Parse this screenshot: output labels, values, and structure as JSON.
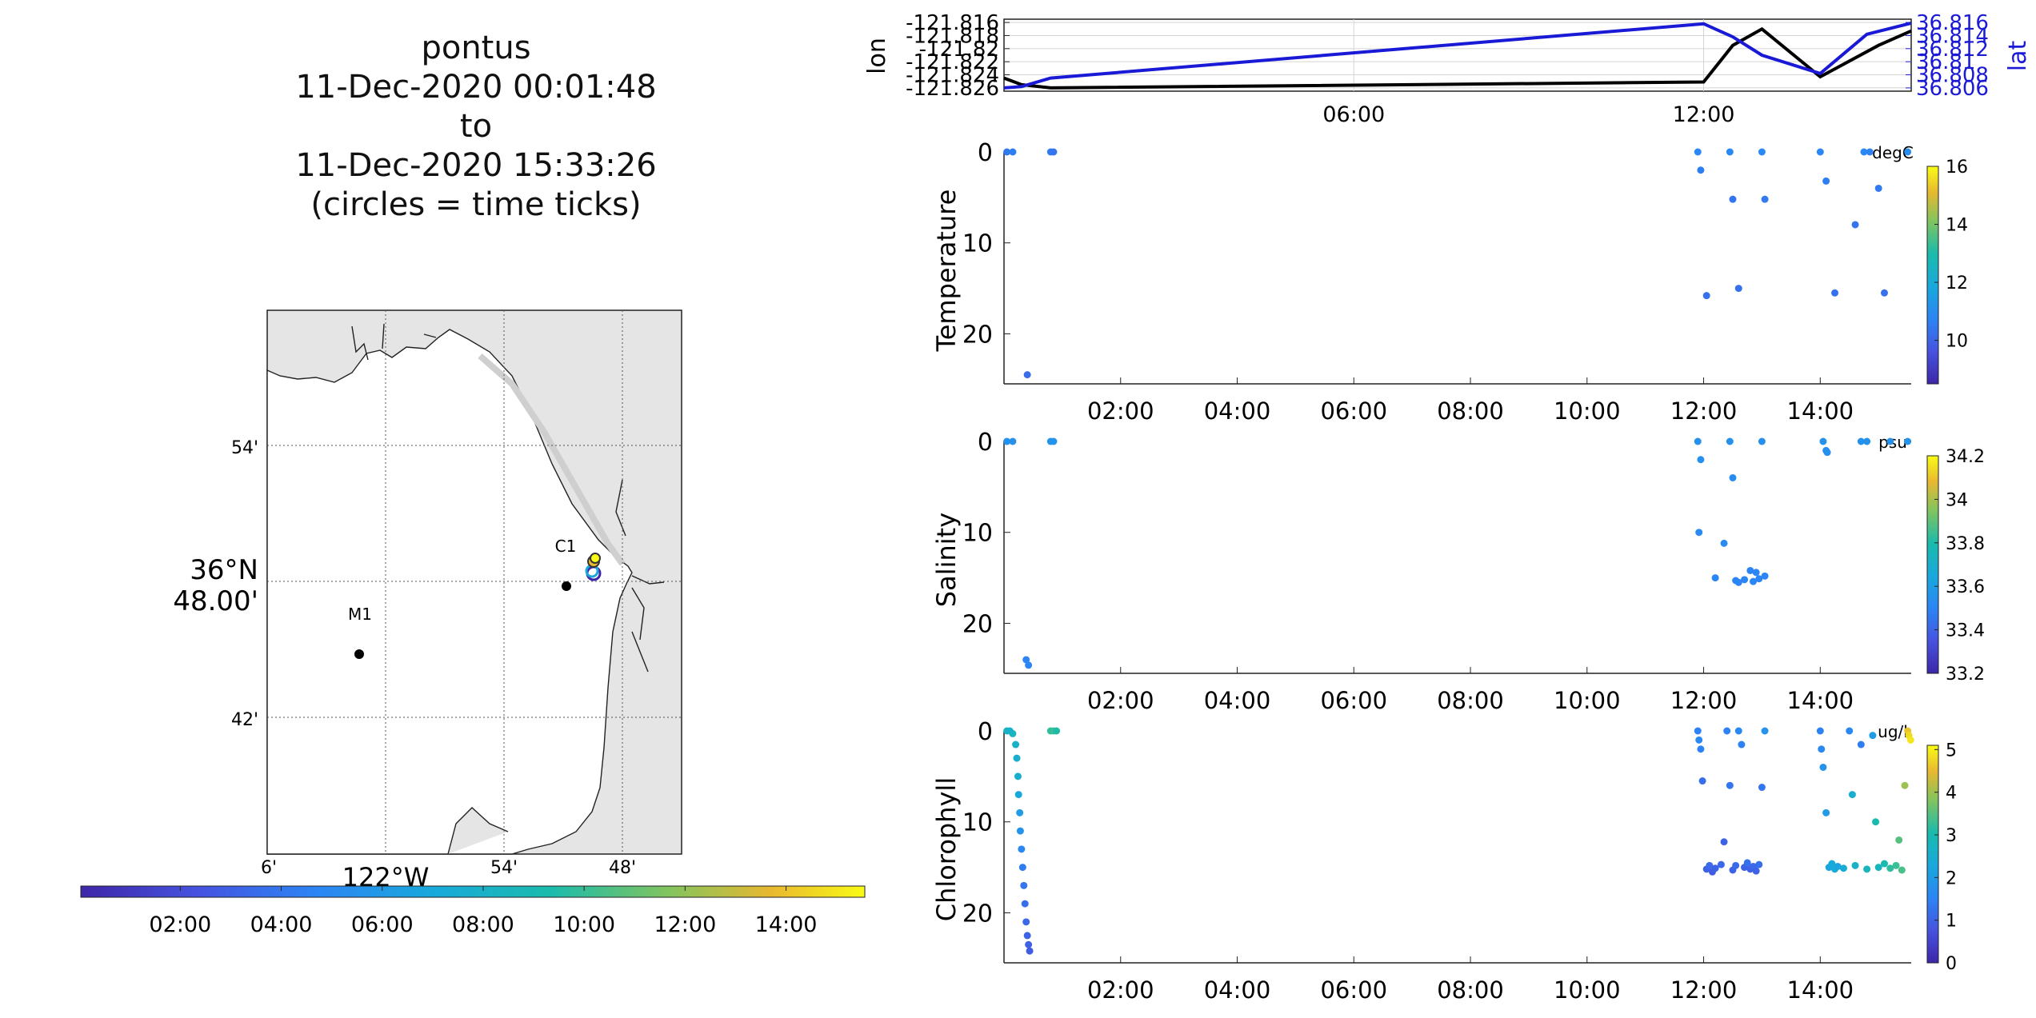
{
  "title": {
    "platform": "pontus",
    "start": "11-Dec-2020 00:01:48",
    "to": "to",
    "end": "11-Dec-2020 15:33:26",
    "note": "(circles = time ticks)"
  },
  "map": {
    "lat_labels": [
      "54'",
      "36°N",
      "48.00'",
      "42'"
    ],
    "lon_labels": [
      "6'",
      "54'",
      "48'"
    ],
    "lon_main_label": "122°W",
    "station_labels": [
      "M1",
      "C1"
    ]
  },
  "time_colorbar": {
    "ticks": [
      "02:00",
      "04:00",
      "06:00",
      "08:00",
      "10:00",
      "12:00",
      "14:00"
    ]
  },
  "time_ticks": [
    "02:00",
    "04:00",
    "06:00",
    "08:00",
    "10:00",
    "12:00",
    "14:00"
  ],
  "nav_ticks": [
    "06:00",
    "12:00"
  ],
  "colors": {
    "lon": "#000000",
    "lat": "#1a1ad6"
  },
  "chart_data": [
    {
      "type": "line",
      "ylabel": "lon",
      "y2label": "lat",
      "xlim": [
        0,
        15.56
      ],
      "ylim": [
        -121.8265,
        -121.8155
      ],
      "y2lim": [
        36.8055,
        36.8165
      ],
      "yticks": [
        -121.816,
        -121.818,
        -121.82,
        -121.822,
        -121.824,
        -121.826
      ],
      "yticklabels": [
        "-121.816",
        "-121.818",
        "-121.82",
        "-121.822",
        "-121.824",
        "-121.826"
      ],
      "y2ticks": [
        36.816,
        36.814,
        36.812,
        36.81,
        36.808,
        36.806
      ],
      "y2ticklabels": [
        "36.816",
        "36.814",
        "36.812",
        "36.81",
        "36.808",
        "36.806"
      ],
      "series": [
        {
          "name": "lon",
          "axis": "left",
          "x": [
            0,
            0.3,
            0.8,
            12.0,
            12.5,
            13.0,
            14.0,
            15.0,
            15.56
          ],
          "y": [
            -121.8245,
            -121.8255,
            -121.826,
            -121.8251,
            -121.8195,
            -121.817,
            -121.8243,
            -121.8195,
            -121.8173
          ]
        },
        {
          "name": "lat",
          "axis": "right",
          "x": [
            0,
            0.3,
            0.8,
            12.0,
            12.5,
            13.0,
            14.0,
            14.8,
            15.56
          ],
          "y": [
            36.806,
            36.8062,
            36.8075,
            36.8158,
            36.8138,
            36.811,
            36.8082,
            36.8142,
            36.8159
          ]
        }
      ]
    },
    {
      "type": "scatter",
      "ylabel": "Temperature",
      "colorbar_label": "degC",
      "xlim": [
        0,
        15.56
      ],
      "ylim": [
        0,
        25.5
      ],
      "yticks": [
        0,
        10,
        20
      ],
      "clim": [
        8.5,
        16
      ],
      "cticks": [
        10,
        12,
        14,
        16
      ],
      "x": [
        0.05,
        0.15,
        0.8,
        0.85,
        0.4,
        11.9,
        11.95,
        12.05,
        12.45,
        12.5,
        12.6,
        13.0,
        13.05,
        14.0,
        14.1,
        14.25,
        14.6,
        14.75,
        14.85,
        15.0,
        15.1,
        15.5
      ],
      "y": [
        0,
        0,
        0,
        0,
        24.5,
        0,
        2,
        15.8,
        0,
        5.2,
        15,
        0,
        5.2,
        0,
        3.2,
        15.5,
        8,
        0,
        0,
        4,
        15.5,
        0
      ],
      "values": [
        10.5,
        10.6,
        10.5,
        10.4,
        10.2,
        10.8,
        10.6,
        10.3,
        10.8,
        10.4,
        10.3,
        10.9,
        10.5,
        10.8,
        10.6,
        10.3,
        10.4,
        10.8,
        10.7,
        10.5,
        10.3,
        11
      ]
    },
    {
      "type": "scatter",
      "ylabel": "Salinity",
      "colorbar_label": "psu",
      "xlim": [
        0,
        15.56
      ],
      "ylim": [
        0,
        25.5
      ],
      "yticks": [
        0,
        10,
        20
      ],
      "clim": [
        33.2,
        34.2
      ],
      "cticks": [
        33.2,
        33.4,
        33.6,
        33.8,
        34,
        34.2
      ],
      "x": [
        0.05,
        0.15,
        0.8,
        0.85,
        0.38,
        0.42,
        11.9,
        11.95,
        11.92,
        12.2,
        12.35,
        12.45,
        12.5,
        12.55,
        12.6,
        12.7,
        12.8,
        12.85,
        12.9,
        12.95,
        13.0,
        13.05,
        14.05,
        14.1,
        14.12,
        14.7,
        14.8,
        15.2,
        15.5
      ],
      "y": [
        0,
        0,
        0,
        0,
        24,
        24.6,
        0,
        2,
        10,
        15,
        11.2,
        0,
        4,
        15.3,
        15.5,
        15.2,
        14.2,
        15.4,
        14.4,
        15.1,
        0,
        14.8,
        0,
        1,
        1.2,
        0,
        0,
        0,
        0
      ],
      "values": [
        33.55,
        33.55,
        33.56,
        33.56,
        33.5,
        33.5,
        33.55,
        33.54,
        33.52,
        33.5,
        33.52,
        33.55,
        33.53,
        33.5,
        33.5,
        33.5,
        33.5,
        33.5,
        33.5,
        33.5,
        33.55,
        33.5,
        33.55,
        33.54,
        33.54,
        33.55,
        33.55,
        33.55,
        33.56
      ]
    },
    {
      "type": "scatter",
      "ylabel": "Chlorophyll",
      "colorbar_label": "ug/l",
      "xlim": [
        0,
        15.56
      ],
      "ylim": [
        0,
        25.5
      ],
      "yticks": [
        0,
        10,
        20
      ],
      "clim": [
        0,
        5.1
      ],
      "cticks": [
        0,
        1,
        2,
        3,
        4,
        5
      ],
      "x": [
        0.05,
        0.1,
        0.15,
        0.2,
        0.22,
        0.24,
        0.25,
        0.27,
        0.28,
        0.3,
        0.32,
        0.34,
        0.36,
        0.38,
        0.4,
        0.42,
        0.44,
        0.8,
        0.85,
        0.9,
        11.9,
        11.92,
        11.95,
        11.98,
        12.05,
        12.1,
        12.15,
        12.2,
        12.3,
        12.35,
        12.4,
        12.45,
        12.5,
        12.55,
        12.6,
        12.65,
        12.7,
        12.75,
        12.8,
        12.85,
        12.9,
        12.95,
        13.0,
        13.05,
        14.0,
        14.02,
        14.05,
        14.1,
        14.15,
        14.2,
        14.25,
        14.3,
        14.4,
        14.5,
        14.55,
        14.6,
        14.7,
        14.8,
        14.9,
        14.95,
        15.0,
        15.1,
        15.2,
        15.3,
        15.35,
        15.4,
        15.45,
        15.5,
        15.52,
        15.55
      ],
      "y": [
        0,
        0,
        0.3,
        1.5,
        3,
        5,
        7,
        9,
        11,
        13,
        15,
        17,
        19,
        21,
        22.5,
        23.5,
        24.2,
        0,
        0,
        0,
        0,
        1,
        2,
        5.5,
        15.2,
        14.8,
        15.5,
        15.1,
        14.7,
        12.2,
        0,
        6,
        15.3,
        14.8,
        0,
        1.5,
        15.0,
        14.5,
        15.2,
        14.9,
        15.4,
        14.7,
        6.2,
        0,
        0,
        2,
        4,
        9,
        15,
        14.6,
        15.2,
        14.9,
        15.1,
        0,
        7,
        14.8,
        1.5,
        15.2,
        0.5,
        10,
        15.0,
        14.6,
        15.1,
        14.8,
        12,
        15.3,
        6,
        0,
        0.5,
        1
      ],
      "values": [
        2.6,
        2.6,
        2.7,
        2.6,
        2.5,
        2.5,
        2.3,
        2.0,
        1.8,
        1.6,
        1.4,
        1.3,
        1.2,
        1.1,
        1.0,
        1.0,
        0.9,
        3.2,
        3.3,
        3.1,
        1.5,
        1.6,
        1.5,
        1.2,
        1.0,
        1.1,
        0.9,
        1.0,
        1.1,
        1.0,
        1.5,
        1.3,
        1.0,
        1.1,
        1.6,
        1.5,
        1.0,
        1.2,
        1.0,
        1.1,
        1.0,
        1.2,
        1.3,
        1.8,
        1.5,
        1.6,
        1.8,
        2.0,
        2.2,
        2.3,
        2.4,
        2.2,
        2.4,
        1.6,
        2.5,
        2.6,
        1.4,
        2.8,
        2.0,
        3.0,
        2.8,
        3.0,
        3.2,
        3.3,
        3.5,
        3.4,
        4.0,
        4.6,
        4.8,
        4.9
      ]
    }
  ]
}
